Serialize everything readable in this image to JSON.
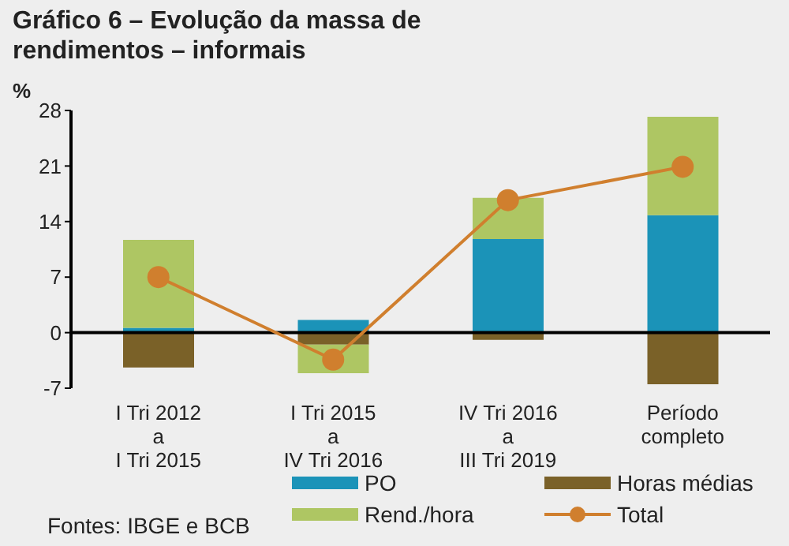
{
  "chart_data": {
    "type": "bar",
    "title": "Gráfico 6 – Evolução da massa de rendimentos – informais",
    "ylabel": "%",
    "categories": [
      "I Tri 2012\na\nI Tri 2015",
      "I Tri 2015\na\nIV Tri 2016",
      "IV Tri 2016\na\nIII Tri 2019",
      "Período\ncompleto"
    ],
    "stacked": true,
    "series": [
      {
        "name": "PO",
        "color": "#1b93b8",
        "values": [
          0.6,
          1.6,
          11.8,
          14.8
        ]
      },
      {
        "name": "Horas médias",
        "color": "#7a6128",
        "values": [
          -4.4,
          -1.5,
          -0.9,
          -6.5
        ]
      },
      {
        "name": "Rend./hora",
        "color": "#aec663",
        "values": [
          11.1,
          -3.6,
          5.2,
          12.4
        ]
      },
      {
        "name": "Total",
        "type": "line",
        "color": "#d07f2e",
        "values": [
          7.0,
          -3.4,
          16.7,
          20.9
        ]
      }
    ],
    "marker": "circle",
    "ylim": [
      -7,
      28
    ],
    "yticks": [
      -7,
      0,
      7,
      14,
      21,
      28
    ],
    "legend": "bottom",
    "annotations": [
      "Fontes: IBGE e BCB"
    ]
  }
}
